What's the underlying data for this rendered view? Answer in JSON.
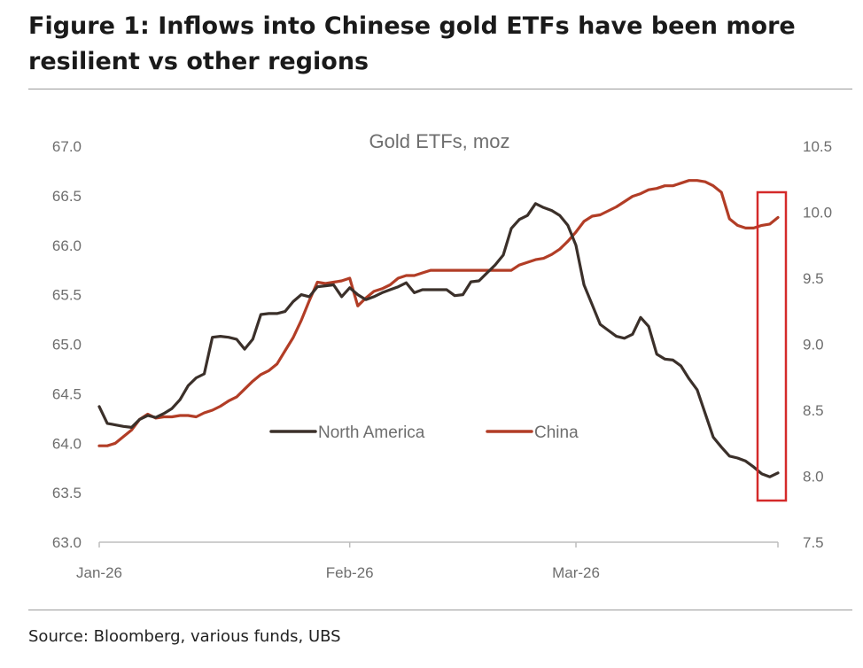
{
  "figure": {
    "title": "Figure 1: Inflows into Chinese gold ETFs have been more resilient vs other regions",
    "source": "Source: Bloomberg, various funds, UBS"
  },
  "colors": {
    "north_america": "#3b302a",
    "china": "#b23d26",
    "highlight_box": "#d42a2a",
    "axis": "#bdbdbd"
  },
  "chart_data": {
    "type": "line",
    "title": "Gold ETFs, moz",
    "x_tick_labels": [
      "Jan-26",
      "Feb-26",
      "Mar-26"
    ],
    "x_tick_days": [
      0,
      31,
      59
    ],
    "x_range_days": [
      0,
      84
    ],
    "left_axis": {
      "ylim": [
        63.0,
        67.0
      ],
      "ticks": [
        "63.0",
        "63.5",
        "64.0",
        "64.5",
        "65.0",
        "65.5",
        "66.0",
        "66.5",
        "67.0"
      ]
    },
    "right_axis": {
      "ylim": [
        7.5,
        10.5
      ],
      "ticks": [
        "7.5",
        "8.0",
        "8.5",
        "9.0",
        "9.5",
        "10.0",
        "10.5"
      ]
    },
    "legend": {
      "position": "center",
      "entries": [
        "North America",
        "China"
      ]
    },
    "grid": false,
    "series": [
      {
        "name": "North America",
        "axis": "left",
        "x_days": [
          0,
          1,
          3,
          4,
          5,
          6,
          7,
          8,
          9,
          10,
          11,
          12,
          13,
          14,
          15,
          16,
          17,
          18,
          19,
          20,
          21,
          22,
          23,
          24,
          25,
          26,
          27,
          28,
          29,
          30,
          31,
          32,
          33,
          34,
          35,
          36,
          37,
          38,
          39,
          40,
          41,
          42,
          43,
          44,
          45,
          46,
          47,
          48,
          49,
          50,
          51,
          52,
          53,
          54,
          55,
          56,
          57,
          58,
          59,
          60,
          61,
          62,
          63,
          64,
          65,
          66,
          67,
          68,
          69,
          70,
          71,
          72,
          73,
          74,
          75,
          76,
          77,
          78,
          79,
          80,
          81,
          82,
          83,
          84
        ],
        "values": [
          64.37,
          64.2,
          64.17,
          64.16,
          64.24,
          64.28,
          64.26,
          64.3,
          64.35,
          64.44,
          64.58,
          64.66,
          64.7,
          65.07,
          65.08,
          65.07,
          65.05,
          64.95,
          65.05,
          65.3,
          65.31,
          65.31,
          65.33,
          65.43,
          65.5,
          65.48,
          65.58,
          65.59,
          65.6,
          65.48,
          65.57,
          65.5,
          65.45,
          65.48,
          65.52,
          65.55,
          65.58,
          65.62,
          65.52,
          65.55,
          65.55,
          65.55,
          65.55,
          65.49,
          65.5,
          65.63,
          65.64,
          65.72,
          65.8,
          65.9,
          66.17,
          66.26,
          66.3,
          66.42,
          66.38,
          66.35,
          66.3,
          66.2,
          66.0,
          65.6,
          65.4,
          65.2,
          65.14,
          65.08,
          65.06,
          65.1,
          65.27,
          65.18,
          64.9,
          64.85,
          64.84,
          64.78,
          64.65,
          64.54,
          64.3,
          64.06,
          63.96,
          63.87,
          63.85,
          63.82,
          63.76,
          63.69,
          63.66,
          63.7
        ]
      },
      {
        "name": "China",
        "axis": "right",
        "x_days": [
          0,
          1,
          2,
          3,
          4,
          5,
          6,
          7,
          8,
          9,
          10,
          11,
          12,
          13,
          14,
          15,
          16,
          17,
          18,
          19,
          20,
          21,
          22,
          23,
          24,
          25,
          26,
          27,
          28,
          29,
          30,
          31,
          32,
          33,
          34,
          35,
          36,
          37,
          38,
          39,
          40,
          41,
          42,
          43,
          44,
          45,
          46,
          47,
          48,
          49,
          50,
          51,
          52,
          53,
          54,
          55,
          56,
          57,
          58,
          59,
          60,
          61,
          62,
          63,
          64,
          65,
          66,
          67,
          68,
          69,
          70,
          71,
          72,
          73,
          74,
          75,
          76,
          77,
          78,
          79,
          80,
          81,
          82,
          83,
          84
        ],
        "values": [
          8.23,
          8.23,
          8.25,
          8.3,
          8.35,
          8.43,
          8.47,
          8.44,
          8.45,
          8.45,
          8.46,
          8.46,
          8.45,
          8.48,
          8.5,
          8.53,
          8.57,
          8.6,
          8.66,
          8.72,
          8.77,
          8.8,
          8.85,
          8.95,
          9.05,
          9.18,
          9.33,
          9.47,
          9.46,
          9.47,
          9.48,
          9.5,
          9.29,
          9.35,
          9.4,
          9.42,
          9.45,
          9.5,
          9.52,
          9.52,
          9.54,
          9.56,
          9.56,
          9.56,
          9.56,
          9.56,
          9.56,
          9.56,
          9.56,
          9.56,
          9.56,
          9.56,
          9.6,
          9.62,
          9.64,
          9.65,
          9.68,
          9.72,
          9.78,
          9.85,
          9.93,
          9.97,
          9.98,
          10.01,
          10.04,
          10.08,
          10.12,
          10.14,
          10.17,
          10.18,
          10.2,
          10.2,
          10.22,
          10.24,
          10.24,
          10.23,
          10.2,
          10.15,
          9.95,
          9.9,
          9.88,
          9.88,
          9.9,
          9.91,
          9.96
        ]
      }
    ]
  }
}
